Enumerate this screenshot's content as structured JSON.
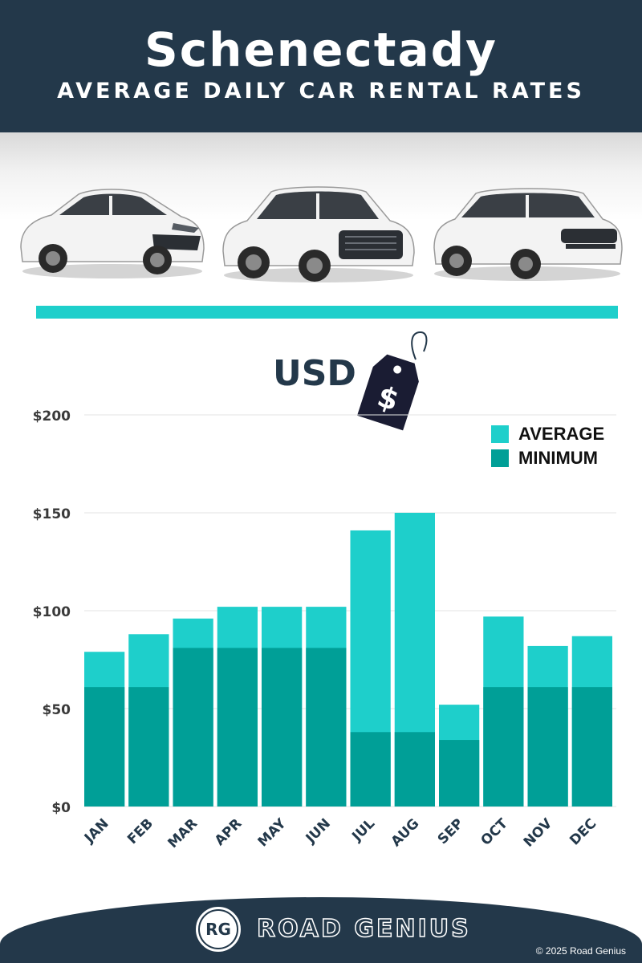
{
  "header": {
    "title": "Schenectady",
    "subtitle": "AVERAGE DAILY CAR RENTAL RATES"
  },
  "currency_label": "USD",
  "price_tag_symbol": "$",
  "colors": {
    "navy": "#23384a",
    "average": "#1ecfcb",
    "minimum": "#009f97",
    "divider": "#1ecfcb"
  },
  "legend": {
    "average_label": "AVERAGE",
    "minimum_label": "MINIMUM"
  },
  "chart_data": {
    "type": "bar",
    "categories": [
      "JAN",
      "FEB",
      "MAR",
      "APR",
      "MAY",
      "JUN",
      "JUL",
      "AUG",
      "SEP",
      "OCT",
      "NOV",
      "DEC"
    ],
    "series": [
      {
        "name": "AVERAGE",
        "values": [
          79,
          88,
          96,
          102,
          102,
          102,
          141,
          150,
          52,
          97,
          82,
          87
        ]
      },
      {
        "name": "MINIMUM",
        "values": [
          61,
          61,
          81,
          81,
          81,
          81,
          38,
          38,
          34,
          61,
          61,
          61
        ]
      }
    ],
    "overlay": true,
    "yticks": [
      "$0",
      "$50",
      "$100",
      "$150",
      "$200"
    ],
    "ytick_values": [
      0,
      50,
      100,
      150,
      200
    ],
    "ylim": [
      0,
      200
    ],
    "grid": true,
    "legend_position": "top-right"
  },
  "footer": {
    "logo_text": "RG",
    "brand": "ROAD GENIUS",
    "copyright": "© 2025 Road Genius"
  }
}
